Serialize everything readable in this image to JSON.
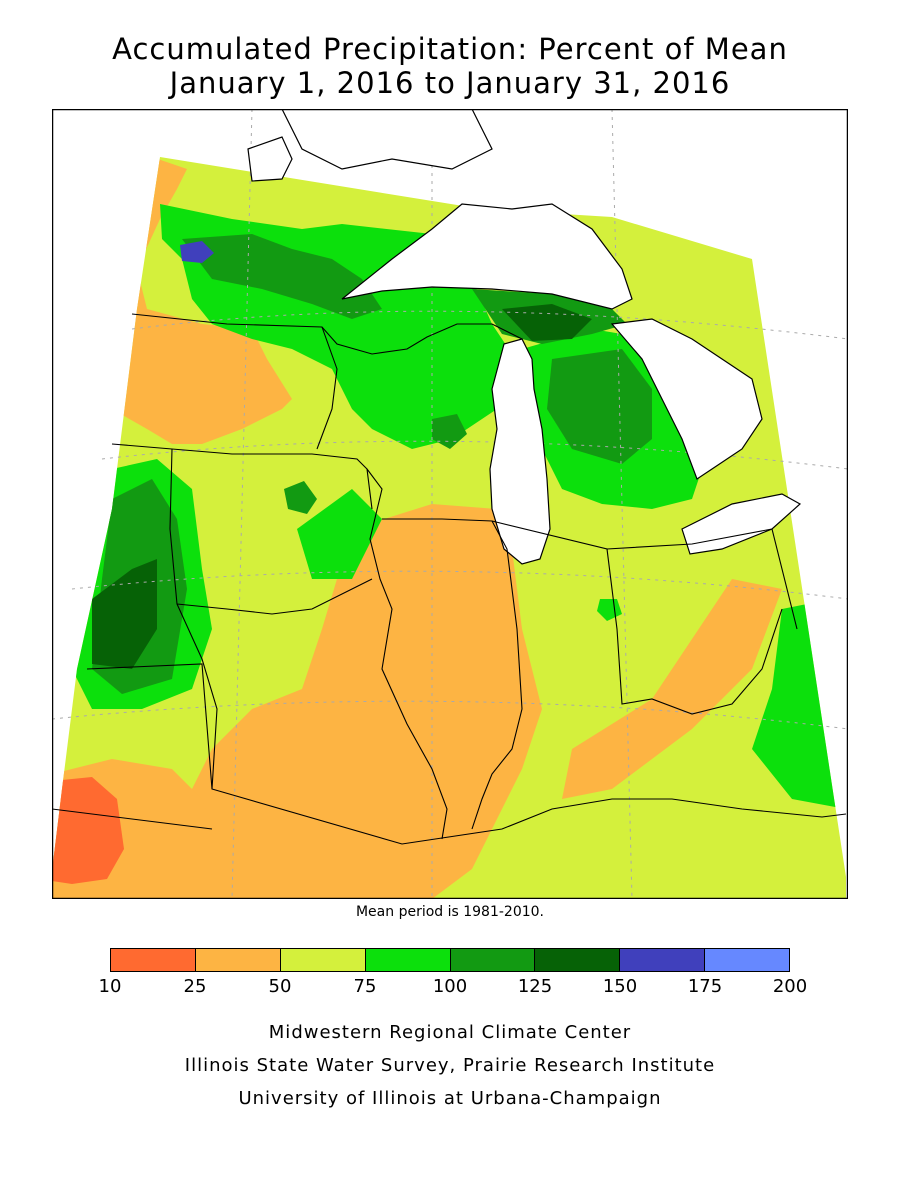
{
  "title": {
    "line1": "Accumulated Precipitation: Percent of Mean",
    "line2": "January 1, 2016 to January 31, 2016"
  },
  "mean_note": "Mean period is 1981-2010.",
  "legend": {
    "bins": [
      {
        "range": "10-25",
        "color": "#ff6a30"
      },
      {
        "range": "25-50",
        "color": "#fdb443"
      },
      {
        "range": "50-75",
        "color": "#d4f03c"
      },
      {
        "range": "75-100",
        "color": "#0ce00c"
      },
      {
        "range": "100-125",
        "color": "#129a12"
      },
      {
        "range": "125-150",
        "color": "#066206"
      },
      {
        "range": "150-175",
        "color": "#4040bc"
      },
      {
        "range": "175-200",
        "color": "#6688ff"
      }
    ],
    "ticks": [
      "10",
      "25",
      "50",
      "75",
      "100",
      "125",
      "150",
      "175",
      "200"
    ]
  },
  "credits": {
    "line1": "Midwestern Regional Climate Center",
    "line2": "Illinois State Water Survey, Prairie Research Institute",
    "line3": "University of Illinois at Urbana-Champaign"
  },
  "colors": {
    "lake": "#ffffff",
    "boundary": "#000000",
    "grid": "#aaaaaa"
  }
}
